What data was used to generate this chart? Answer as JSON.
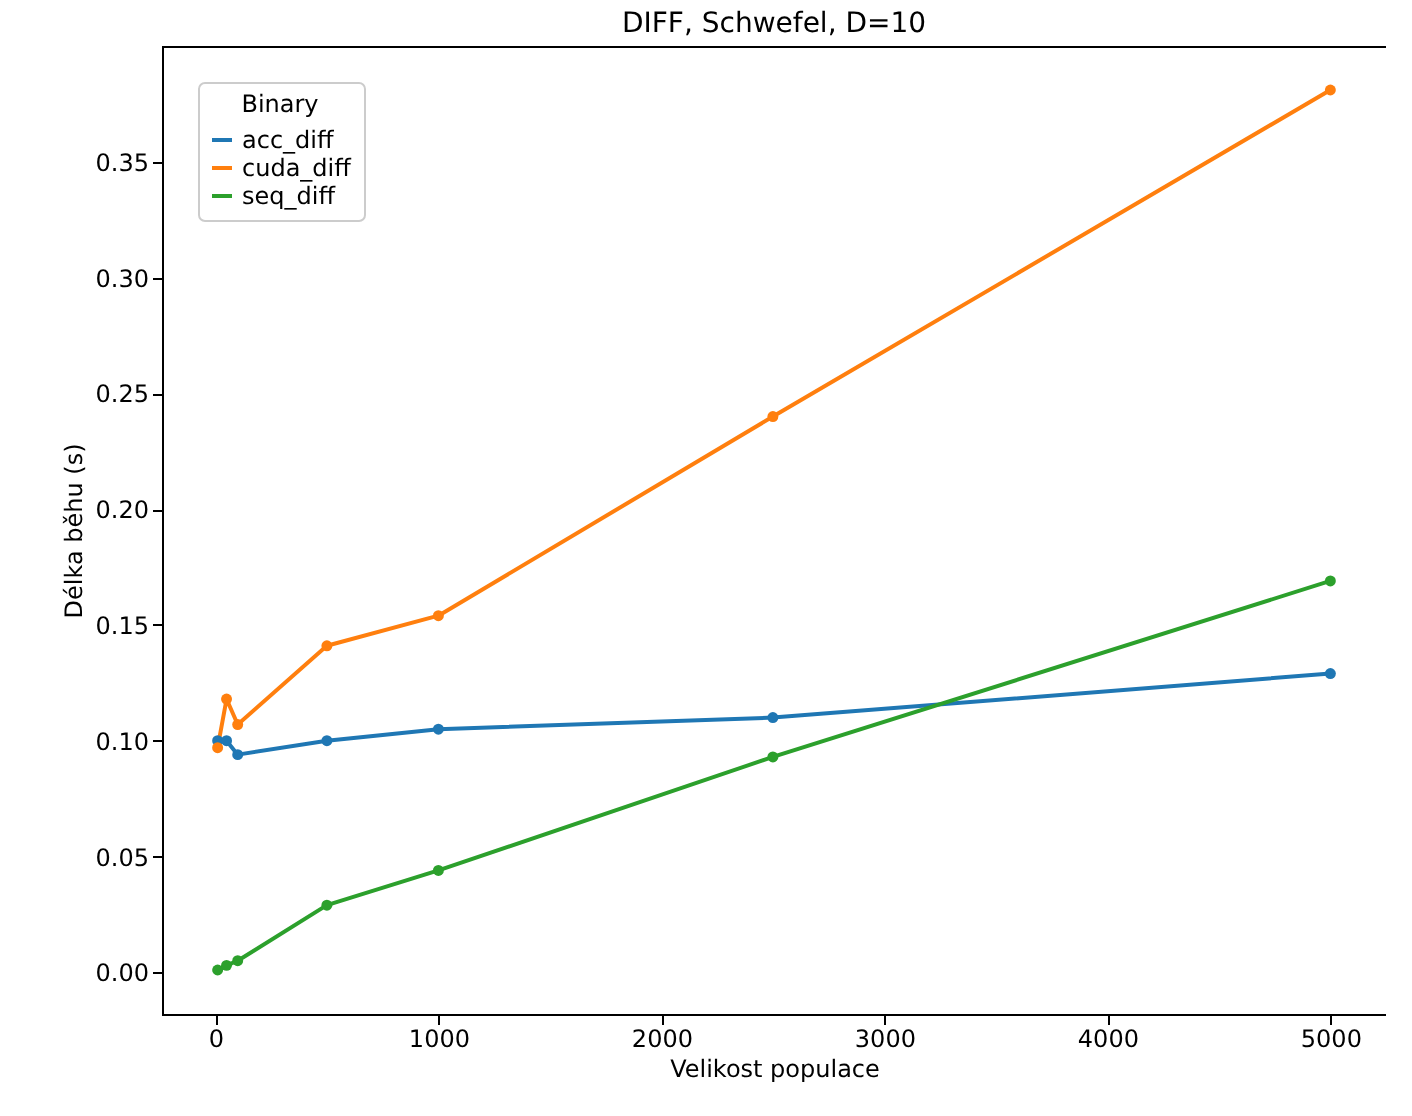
{
  "chart_data": {
    "type": "line",
    "title": "DIFF, Schwefel, D=10",
    "xlabel": "Velikost populace",
    "ylabel": "Délka běhu (s)",
    "legend_title": "Binary",
    "x": [
      10,
      50,
      100,
      500,
      1000,
      2500,
      5000
    ],
    "series": [
      {
        "name": "acc_diff",
        "color": "#1f77b4",
        "values": [
          0.1,
          0.1,
          0.094,
          0.1,
          0.105,
          0.11,
          0.129
        ]
      },
      {
        "name": "cuda_diff",
        "color": "#ff7f0e",
        "values": [
          0.097,
          0.118,
          0.107,
          0.141,
          0.154,
          0.24,
          0.381
        ]
      },
      {
        "name": "seq_diff",
        "color": "#2ca02c",
        "values": [
          0.001,
          0.003,
          0.005,
          0.029,
          0.044,
          0.093,
          0.169
        ]
      }
    ],
    "xlim": [
      -239.5,
      5249.5
    ],
    "xticks": [
      0,
      1000,
      2000,
      3000,
      4000,
      5000
    ],
    "ylim": [
      -0.018,
      0.4
    ],
    "yticks": [
      {
        "value": 0,
        "label": "0.00"
      },
      {
        "value": 0.05,
        "label": "0.05"
      },
      {
        "value": 0.1,
        "label": "0.10"
      },
      {
        "value": 0.15,
        "label": "0.15"
      },
      {
        "value": 0.2,
        "label": "0.20"
      },
      {
        "value": 0.25,
        "label": "0.25"
      },
      {
        "value": 0.3,
        "label": "0.30"
      },
      {
        "value": 0.35,
        "label": "0.35"
      }
    ],
    "grid": false,
    "legend": "top left",
    "marker": "circle",
    "line_style": "solid"
  }
}
